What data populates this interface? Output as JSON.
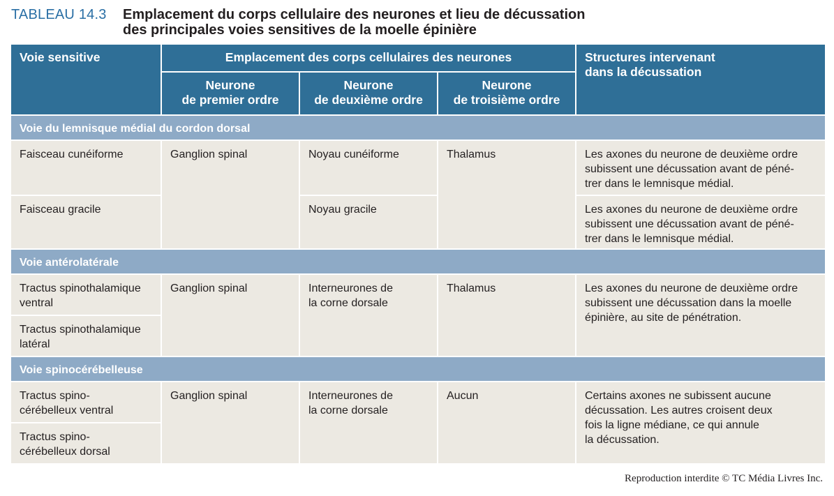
{
  "title": {
    "label": "TABLEAU 14.3",
    "line1": "Emplacement du corps cellulaire des neurones et lieu de décussation",
    "line2": "des principales voies sensitives de la moelle épinière"
  },
  "header": {
    "voie": "Voie sensitive",
    "emplacement": "Emplacement des corps cellulaires des neurones",
    "structures": [
      "Structures intervenant",
      "dans la décussation"
    ],
    "premier": [
      "Neurone",
      "de premier ordre"
    ],
    "deuxieme": [
      "Neurone",
      "de deuxième ordre"
    ],
    "troisieme": [
      "Neurone",
      "de troisième ordre"
    ]
  },
  "sections": [
    {
      "name": "Voie du lemnisque médial du cordon dorsal",
      "rows": [
        {
          "voie": "Faisceau cunéiforme",
          "premier": "Ganglion spinal",
          "deuxieme": "Noyau cunéiforme",
          "troisieme": "Thalamus",
          "structures": [
            "Les axones du neurone de deuxième ordre",
            "subissent une décussation avant de péné-",
            "trer dans le lemnisque médial."
          ]
        },
        {
          "voie": "Faisceau gracile",
          "deuxieme": "Noyau gracile",
          "structures": [
            "Les axones du neurone de deuxième ordre",
            "subissent une décussation avant de péné-",
            "trer dans le lemnisque médial."
          ]
        }
      ]
    },
    {
      "name": "Voie antérolatérale",
      "rows": [
        {
          "voie": [
            "Tractus spinothalamique",
            "ventral"
          ],
          "premier": "Ganglion spinal",
          "deuxieme": [
            "Interneurones de",
            "la corne dorsale"
          ],
          "troisieme": "Thalamus",
          "structures": [
            "Les axones du neurone de deuxième ordre",
            "subissent une décussation dans la moelle",
            "épinière, au site de pénétration."
          ]
        },
        {
          "voie": [
            "Tractus spinothalamique",
            "latéral"
          ]
        }
      ]
    },
    {
      "name": "Voie spinocérébelleuse",
      "rows": [
        {
          "voie": [
            "Tractus spino-",
            "cérébelleux ventral"
          ],
          "premier": "Ganglion spinal",
          "deuxieme": [
            "Interneurones de",
            "la corne dorsale"
          ],
          "troisieme": "Aucun",
          "structures": [
            "Certains axones ne subissent aucune",
            "décussation. Les autres croisent deux",
            "fois la ligne médiane, ce qui annule",
            "la décussation."
          ]
        },
        {
          "voie": [
            "Tractus spino-",
            "cérébelleux dorsal"
          ]
        }
      ]
    }
  ],
  "footer": "Reproduction interdite © TC Média Livres Inc."
}
